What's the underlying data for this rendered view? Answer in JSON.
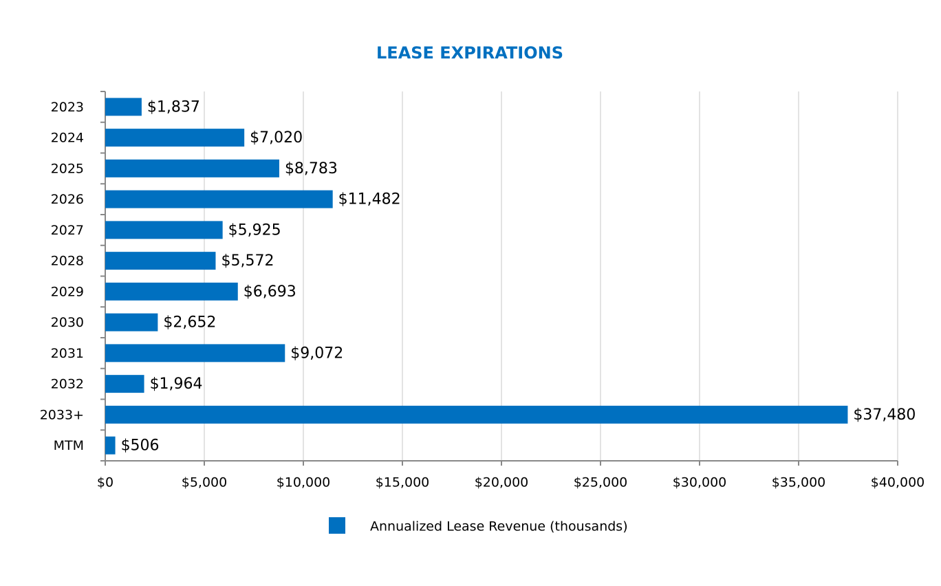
{
  "chart_data": {
    "type": "bar",
    "orientation": "horizontal",
    "title": "LEASE EXPIRATIONS",
    "categories": [
      "2023",
      "2024",
      "2025",
      "2026",
      "2027",
      "2028",
      "2029",
      "2030",
      "2031",
      "2032",
      "2033+",
      "MTM"
    ],
    "series": [
      {
        "name": "Annualized Lease Revenue (thousands)",
        "color": "#0070c0",
        "values": [
          1837,
          7020,
          8783,
          11482,
          5925,
          5572,
          6693,
          2652,
          9072,
          1964,
          37480,
          506
        ],
        "value_labels": [
          "$1,837",
          "$7,020",
          "$8,783",
          "$11,482",
          "$5,925",
          "$5,572",
          "$6,693",
          "$2,652",
          "$9,072",
          "$1,964",
          "$37,480",
          "$506"
        ]
      }
    ],
    "xlim": [
      0,
      40000
    ],
    "xticks": [
      {
        "value": 0,
        "label": "$0"
      },
      {
        "value": 5000,
        "label": "$5,000"
      },
      {
        "value": 10000,
        "label": "$10,000"
      },
      {
        "value": 15000,
        "label": "$15,000"
      },
      {
        "value": 20000,
        "label": "$20,000"
      },
      {
        "value": 25000,
        "label": "$25,000"
      },
      {
        "value": 30000,
        "label": "$30,000"
      },
      {
        "value": 35000,
        "label": "$35,000"
      },
      {
        "value": 40000,
        "label": "$40,000"
      }
    ],
    "grid": true,
    "legend": "bottom"
  }
}
